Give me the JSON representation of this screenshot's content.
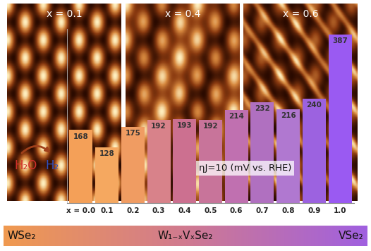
{
  "chart_data": {
    "type": "bar",
    "ylabel": "ηJ=10 (mV vs. RHE)",
    "categories": [
      "x = 0.0",
      "0.1",
      "0.2",
      "0.3",
      "0.4",
      "0.5",
      "0.6",
      "0.7",
      "0.8",
      "0.9",
      "1.0"
    ],
    "values": [
      168,
      128,
      175,
      192,
      193,
      192,
      214,
      232,
      216,
      240,
      387
    ],
    "colors": [
      "#f4a058",
      "#f5a860",
      "#f09c62",
      "#d8828a",
      "#cc7090",
      "#c8749a",
      "#c070b0",
      "#b070c0",
      "#b078d0",
      "#9c62e0",
      "#9a5af2"
    ],
    "ylim": [
      0,
      400
    ],
    "yticks": [],
    "tick_labels": "x",
    "data_labels": true,
    "grid": false
  },
  "images": {
    "labels": [
      "x = 0.1",
      "x = 0.4",
      "x = 0.6"
    ]
  },
  "reaction": {
    "reactant": "H₂O",
    "product": "H₂"
  },
  "composition_band": {
    "left": "WSe₂",
    "center": "W₁₋ₓVₓSe₂",
    "right": "VSe₂"
  }
}
